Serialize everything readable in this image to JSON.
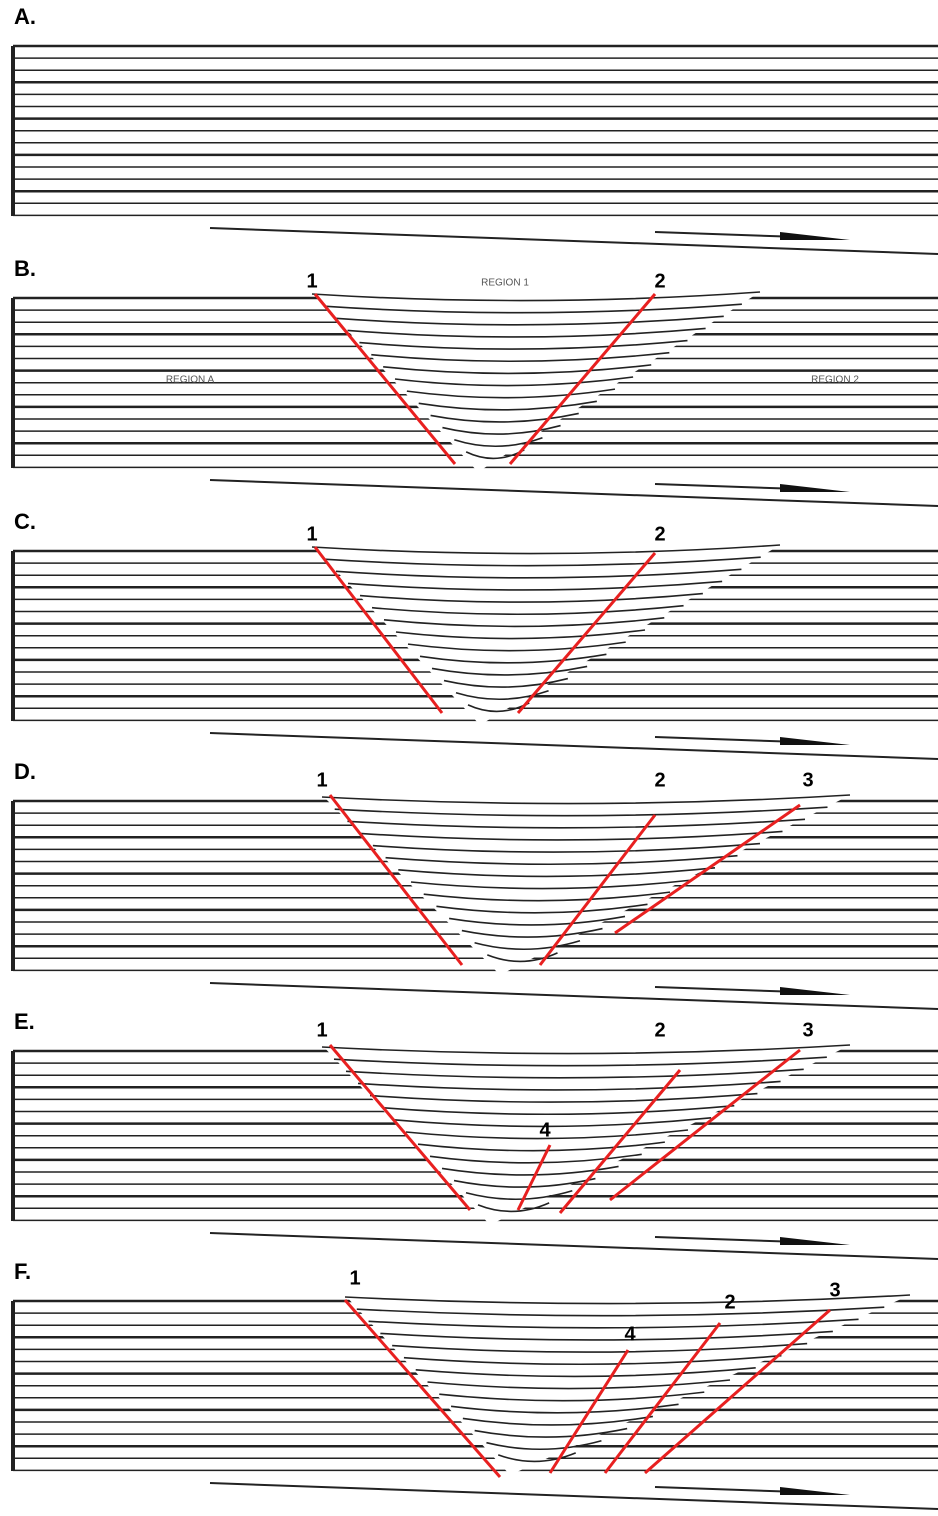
{
  "panels": [
    {
      "label": "A."
    },
    {
      "label": "B.",
      "faults": [
        "1",
        "2"
      ],
      "regions": [
        "REGION 1",
        "REGION A",
        "REGION 2"
      ]
    },
    {
      "label": "C.",
      "faults": [
        "1",
        "2"
      ]
    },
    {
      "label": "D.",
      "faults": [
        "1",
        "2",
        "3"
      ]
    },
    {
      "label": "E.",
      "faults": [
        "1",
        "2",
        "3",
        "4"
      ]
    },
    {
      "label": "F.",
      "faults": [
        "1",
        "2",
        "3",
        "4"
      ]
    }
  ]
}
